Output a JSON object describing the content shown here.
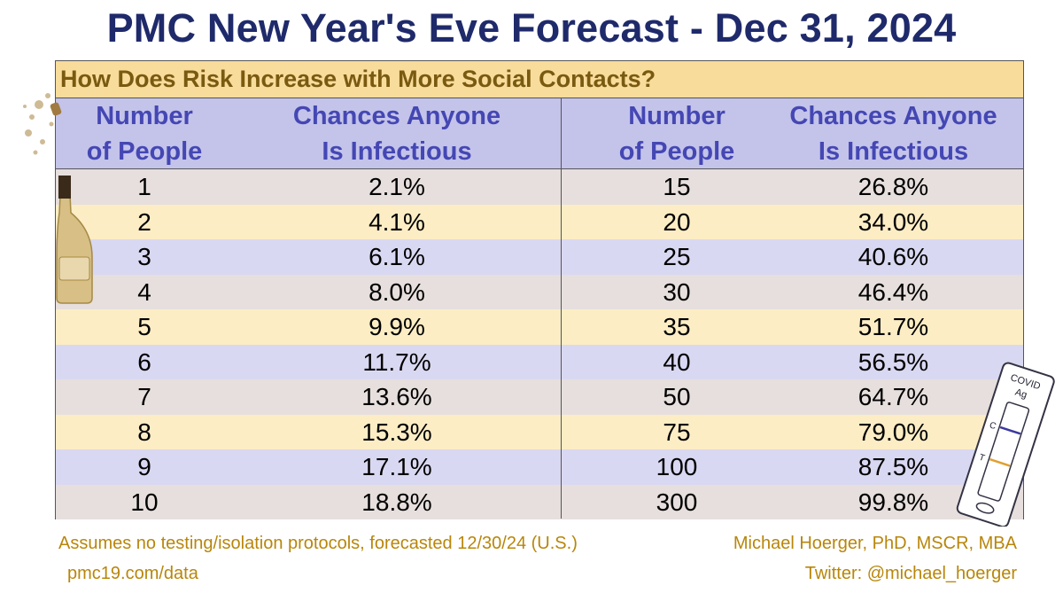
{
  "title": "PMC New Year's Eve Forecast - Dec 31, 2024",
  "subtitle": "How Does Risk Increase with More Social Contacts?",
  "headers": {
    "number_line1": "Number",
    "number_line2": "of People",
    "chance_line1": "Chances Anyone",
    "chance_line2": "Is Infectious"
  },
  "left_rows": [
    {
      "n": "1",
      "p": "2.1%"
    },
    {
      "n": "2",
      "p": "4.1%"
    },
    {
      "n": "3",
      "p": "6.1%"
    },
    {
      "n": "4",
      "p": "8.0%"
    },
    {
      "n": "5",
      "p": "9.9%"
    },
    {
      "n": "6",
      "p": "11.7%"
    },
    {
      "n": "7",
      "p": "13.6%"
    },
    {
      "n": "8",
      "p": "15.3%"
    },
    {
      "n": "9",
      "p": "17.1%"
    },
    {
      "n": "10",
      "p": "18.8%"
    }
  ],
  "right_rows": [
    {
      "n": "15",
      "p": "26.8%"
    },
    {
      "n": "20",
      "p": "34.0%"
    },
    {
      "n": "25",
      "p": "40.6%"
    },
    {
      "n": "30",
      "p": "46.4%"
    },
    {
      "n": "35",
      "p": "51.7%"
    },
    {
      "n": "40",
      "p": "56.5%"
    },
    {
      "n": "50",
      "p": "64.7%"
    },
    {
      "n": "75",
      "p": "79.0%"
    },
    {
      "n": "100",
      "p": "87.5%"
    },
    {
      "n": "300",
      "p": "99.8%"
    }
  ],
  "row_colors": [
    "#e6dfdd",
    "#fcedc5",
    "#d9d8f2"
  ],
  "footer": {
    "note": "Assumes no testing/isolation protocols, forecasted 12/30/24 (U.S.)",
    "url": "pmc19.com/data",
    "author": "Michael Hoerger, PhD, MSCR, MBA",
    "twitter": "Twitter: @michael_hoerger"
  },
  "test_kit": {
    "label1": "COVID",
    "label2": "Ag",
    "c": "C",
    "t": "T"
  },
  "icons": [
    "champagne-bottle-icon",
    "covid-test-icon"
  ]
}
